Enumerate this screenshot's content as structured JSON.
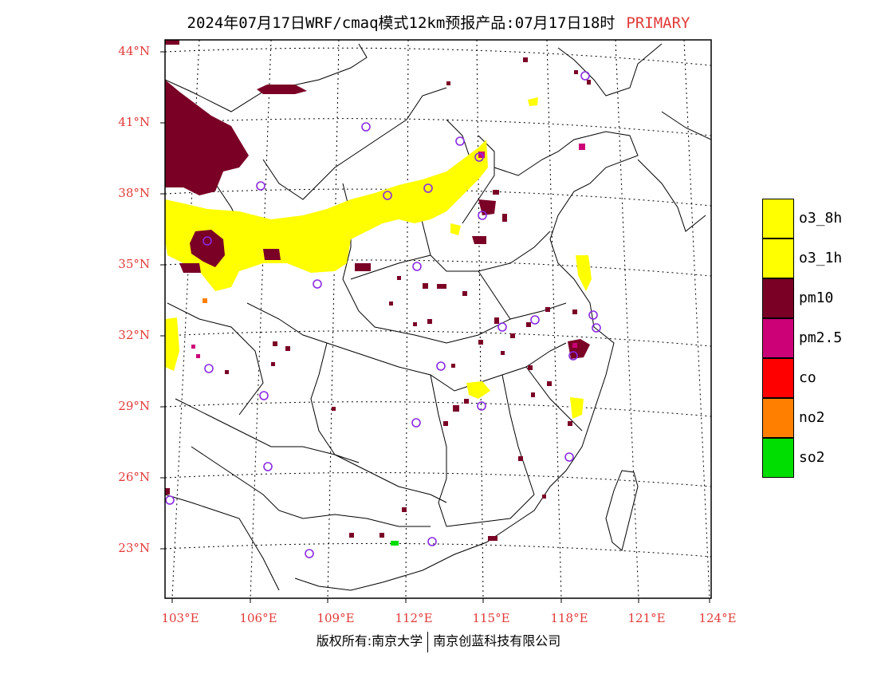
{
  "header": {
    "title": "2024年07月17日WRF/cmaq模式12km预报产品:07月17日18时",
    "tag": "PRIMARY"
  },
  "axes": {
    "lat_labels": [
      "44°N",
      "41°N",
      "38°N",
      "35°N",
      "32°N",
      "29°N",
      "26°N",
      "23°N"
    ],
    "lon_labels": [
      "103°E",
      "106°E",
      "109°E",
      "112°E",
      "115°E",
      "118°E",
      "121°E",
      "124°E"
    ]
  },
  "legend": {
    "items": [
      {
        "label": "o3_8h",
        "color": "#ffff00"
      },
      {
        "label": "o3_1h",
        "color": "#ffff00"
      },
      {
        "label": "pm10",
        "color": "#7a0026"
      },
      {
        "label": "pm2.5",
        "color": "#cc0077"
      },
      {
        "label": "co",
        "color": "#ff0000"
      },
      {
        "label": "no2",
        "color": "#ff7f00"
      },
      {
        "label": "so2",
        "color": "#00dd00"
      }
    ]
  },
  "footer": {
    "left": "版权所有:南京大学",
    "right": "南京创蓝科技有限公司"
  },
  "colors": {
    "o3": "#ffff00",
    "pm10": "#7a0026",
    "pm25": "#cc0077",
    "no2": "#ff7f00",
    "so2": "#00dd00",
    "station": "#8a2be2",
    "label_red": "#e23a3a"
  }
}
